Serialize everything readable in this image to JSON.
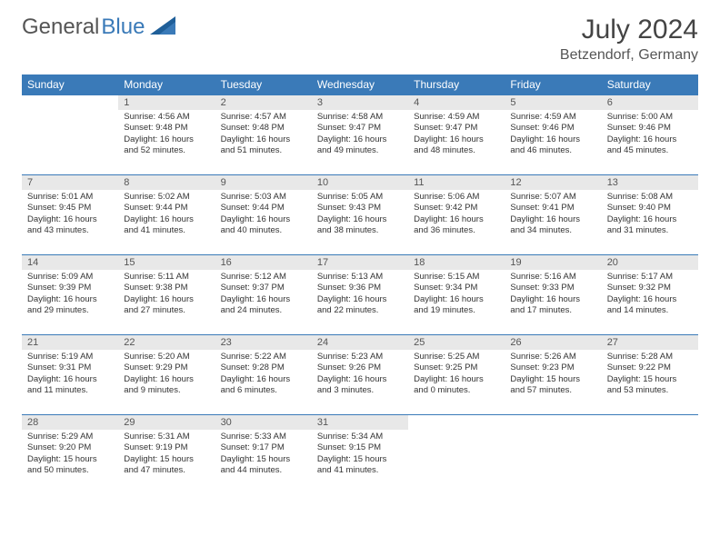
{
  "logo": {
    "text_gray": "General",
    "text_blue": "Blue"
  },
  "title": "July 2024",
  "location": "Betzendorf, Germany",
  "colors": {
    "header_bg": "#3a7ab8",
    "header_fg": "#ffffff",
    "daynum_bg": "#e8e8e8",
    "border": "#3a7ab8"
  },
  "day_headers": [
    "Sunday",
    "Monday",
    "Tuesday",
    "Wednesday",
    "Thursday",
    "Friday",
    "Saturday"
  ],
  "weeks": [
    [
      null,
      {
        "n": "1",
        "sr": "Sunrise: 4:56 AM",
        "ss": "Sunset: 9:48 PM",
        "dl1": "Daylight: 16 hours",
        "dl2": "and 52 minutes."
      },
      {
        "n": "2",
        "sr": "Sunrise: 4:57 AM",
        "ss": "Sunset: 9:48 PM",
        "dl1": "Daylight: 16 hours",
        "dl2": "and 51 minutes."
      },
      {
        "n": "3",
        "sr": "Sunrise: 4:58 AM",
        "ss": "Sunset: 9:47 PM",
        "dl1": "Daylight: 16 hours",
        "dl2": "and 49 minutes."
      },
      {
        "n": "4",
        "sr": "Sunrise: 4:59 AM",
        "ss": "Sunset: 9:47 PM",
        "dl1": "Daylight: 16 hours",
        "dl2": "and 48 minutes."
      },
      {
        "n": "5",
        "sr": "Sunrise: 4:59 AM",
        "ss": "Sunset: 9:46 PM",
        "dl1": "Daylight: 16 hours",
        "dl2": "and 46 minutes."
      },
      {
        "n": "6",
        "sr": "Sunrise: 5:00 AM",
        "ss": "Sunset: 9:46 PM",
        "dl1": "Daylight: 16 hours",
        "dl2": "and 45 minutes."
      }
    ],
    [
      {
        "n": "7",
        "sr": "Sunrise: 5:01 AM",
        "ss": "Sunset: 9:45 PM",
        "dl1": "Daylight: 16 hours",
        "dl2": "and 43 minutes."
      },
      {
        "n": "8",
        "sr": "Sunrise: 5:02 AM",
        "ss": "Sunset: 9:44 PM",
        "dl1": "Daylight: 16 hours",
        "dl2": "and 41 minutes."
      },
      {
        "n": "9",
        "sr": "Sunrise: 5:03 AM",
        "ss": "Sunset: 9:44 PM",
        "dl1": "Daylight: 16 hours",
        "dl2": "and 40 minutes."
      },
      {
        "n": "10",
        "sr": "Sunrise: 5:05 AM",
        "ss": "Sunset: 9:43 PM",
        "dl1": "Daylight: 16 hours",
        "dl2": "and 38 minutes."
      },
      {
        "n": "11",
        "sr": "Sunrise: 5:06 AM",
        "ss": "Sunset: 9:42 PM",
        "dl1": "Daylight: 16 hours",
        "dl2": "and 36 minutes."
      },
      {
        "n": "12",
        "sr": "Sunrise: 5:07 AM",
        "ss": "Sunset: 9:41 PM",
        "dl1": "Daylight: 16 hours",
        "dl2": "and 34 minutes."
      },
      {
        "n": "13",
        "sr": "Sunrise: 5:08 AM",
        "ss": "Sunset: 9:40 PM",
        "dl1": "Daylight: 16 hours",
        "dl2": "and 31 minutes."
      }
    ],
    [
      {
        "n": "14",
        "sr": "Sunrise: 5:09 AM",
        "ss": "Sunset: 9:39 PM",
        "dl1": "Daylight: 16 hours",
        "dl2": "and 29 minutes."
      },
      {
        "n": "15",
        "sr": "Sunrise: 5:11 AM",
        "ss": "Sunset: 9:38 PM",
        "dl1": "Daylight: 16 hours",
        "dl2": "and 27 minutes."
      },
      {
        "n": "16",
        "sr": "Sunrise: 5:12 AM",
        "ss": "Sunset: 9:37 PM",
        "dl1": "Daylight: 16 hours",
        "dl2": "and 24 minutes."
      },
      {
        "n": "17",
        "sr": "Sunrise: 5:13 AM",
        "ss": "Sunset: 9:36 PM",
        "dl1": "Daylight: 16 hours",
        "dl2": "and 22 minutes."
      },
      {
        "n": "18",
        "sr": "Sunrise: 5:15 AM",
        "ss": "Sunset: 9:34 PM",
        "dl1": "Daylight: 16 hours",
        "dl2": "and 19 minutes."
      },
      {
        "n": "19",
        "sr": "Sunrise: 5:16 AM",
        "ss": "Sunset: 9:33 PM",
        "dl1": "Daylight: 16 hours",
        "dl2": "and 17 minutes."
      },
      {
        "n": "20",
        "sr": "Sunrise: 5:17 AM",
        "ss": "Sunset: 9:32 PM",
        "dl1": "Daylight: 16 hours",
        "dl2": "and 14 minutes."
      }
    ],
    [
      {
        "n": "21",
        "sr": "Sunrise: 5:19 AM",
        "ss": "Sunset: 9:31 PM",
        "dl1": "Daylight: 16 hours",
        "dl2": "and 11 minutes."
      },
      {
        "n": "22",
        "sr": "Sunrise: 5:20 AM",
        "ss": "Sunset: 9:29 PM",
        "dl1": "Daylight: 16 hours",
        "dl2": "and 9 minutes."
      },
      {
        "n": "23",
        "sr": "Sunrise: 5:22 AM",
        "ss": "Sunset: 9:28 PM",
        "dl1": "Daylight: 16 hours",
        "dl2": "and 6 minutes."
      },
      {
        "n": "24",
        "sr": "Sunrise: 5:23 AM",
        "ss": "Sunset: 9:26 PM",
        "dl1": "Daylight: 16 hours",
        "dl2": "and 3 minutes."
      },
      {
        "n": "25",
        "sr": "Sunrise: 5:25 AM",
        "ss": "Sunset: 9:25 PM",
        "dl1": "Daylight: 16 hours",
        "dl2": "and 0 minutes."
      },
      {
        "n": "26",
        "sr": "Sunrise: 5:26 AM",
        "ss": "Sunset: 9:23 PM",
        "dl1": "Daylight: 15 hours",
        "dl2": "and 57 minutes."
      },
      {
        "n": "27",
        "sr": "Sunrise: 5:28 AM",
        "ss": "Sunset: 9:22 PM",
        "dl1": "Daylight: 15 hours",
        "dl2": "and 53 minutes."
      }
    ],
    [
      {
        "n": "28",
        "sr": "Sunrise: 5:29 AM",
        "ss": "Sunset: 9:20 PM",
        "dl1": "Daylight: 15 hours",
        "dl2": "and 50 minutes."
      },
      {
        "n": "29",
        "sr": "Sunrise: 5:31 AM",
        "ss": "Sunset: 9:19 PM",
        "dl1": "Daylight: 15 hours",
        "dl2": "and 47 minutes."
      },
      {
        "n": "30",
        "sr": "Sunrise: 5:33 AM",
        "ss": "Sunset: 9:17 PM",
        "dl1": "Daylight: 15 hours",
        "dl2": "and 44 minutes."
      },
      {
        "n": "31",
        "sr": "Sunrise: 5:34 AM",
        "ss": "Sunset: 9:15 PM",
        "dl1": "Daylight: 15 hours",
        "dl2": "and 41 minutes."
      },
      null,
      null,
      null
    ]
  ]
}
